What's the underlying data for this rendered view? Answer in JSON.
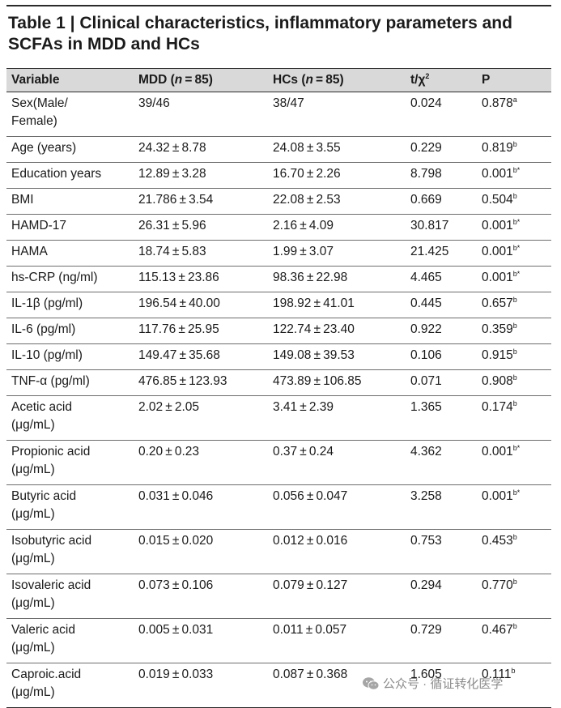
{
  "title": {
    "label": "Table 1",
    "separator": "|",
    "text": "Clinical characteristics, inflammatory parameters and SCFAs in MDD and HCs"
  },
  "columns": [
    {
      "text": "Variable"
    },
    {
      "text": "MDD (",
      "italic": "n",
      "rest": " = 85)"
    },
    {
      "text": "HCs (",
      "italic": "n",
      "rest": " = 85)"
    },
    {
      "text": "t/χ",
      "sup": "2"
    },
    {
      "text": "P"
    }
  ],
  "rows": [
    {
      "variable": "Sex(Male/\nFemale)",
      "mdd": "39/46",
      "hcs": "38/47",
      "stat": "0.024",
      "p": "0.878",
      "p_sup": "a",
      "lines": 2
    },
    {
      "variable": "Age (years)",
      "mdd": "24.32 ± 8.78",
      "hcs": "24.08 ± 3.55",
      "stat": "0.229",
      "p": "0.819",
      "p_sup": "b",
      "lines": 1
    },
    {
      "variable": "Education years",
      "mdd": "12.89 ± 3.28",
      "hcs": "16.70 ± 2.26",
      "stat": "8.798",
      "p": "0.001",
      "p_sup": "b*",
      "lines": 1
    },
    {
      "variable": "BMI",
      "mdd": "21.786 ± 3.54",
      "hcs": "22.08 ± 2.53",
      "stat": "0.669",
      "p": "0.504",
      "p_sup": "b",
      "lines": 1
    },
    {
      "variable": "HAMD-17",
      "mdd": "26.31 ± 5.96",
      "hcs": "2.16 ± 4.09",
      "stat": "30.817",
      "p": "0.001",
      "p_sup": "b*",
      "lines": 1
    },
    {
      "variable": "HAMA",
      "mdd": "18.74 ± 5.83",
      "hcs": "1.99 ± 3.07",
      "stat": "21.425",
      "p": "0.001",
      "p_sup": "b*",
      "lines": 1
    },
    {
      "variable": "hs-CRP (ng/ml)",
      "mdd": "115.13 ± 23.86",
      "hcs": "98.36 ± 22.98",
      "stat": "4.465",
      "p": "0.001",
      "p_sup": "b*",
      "lines": 1
    },
    {
      "variable": "IL-1β (pg/ml)",
      "mdd": "196.54 ± 40.00",
      "hcs": "198.92 ± 41.01",
      "stat": "0.445",
      "p": "0.657",
      "p_sup": "b",
      "lines": 1
    },
    {
      "variable": "IL-6 (pg/ml)",
      "mdd": "117.76 ± 25.95",
      "hcs": "122.74 ± 23.40",
      "stat": "0.922",
      "p": "0.359",
      "p_sup": "b",
      "lines": 1
    },
    {
      "variable": "IL-10 (pg/ml)",
      "mdd": "149.47 ± 35.68",
      "hcs": "149.08 ± 39.53",
      "stat": "0.106",
      "p": "0.915",
      "p_sup": "b",
      "lines": 1
    },
    {
      "variable": "TNF-α (pg/ml)",
      "mdd": "476.85 ± 123.93",
      "hcs": "473.89 ± 106.85",
      "stat": "0.071",
      "p": "0.908",
      "p_sup": "b",
      "lines": 1
    },
    {
      "variable": "Acetic acid\n(μg/mL)",
      "mdd": "2.02 ± 2.05",
      "hcs": "3.41 ± 2.39",
      "stat": "1.365",
      "p": "0.174",
      "p_sup": "b",
      "lines": 2
    },
    {
      "variable": "Propionic acid\n(μg/mL)",
      "mdd": "0.20 ± 0.23",
      "hcs": "0.37 ± 0.24",
      "stat": "4.362",
      "p": "0.001",
      "p_sup": "b*",
      "lines": 2
    },
    {
      "variable": "Butyric acid\n(μg/mL)",
      "mdd": "0.031 ± 0.046",
      "hcs": "0.056 ± 0.047",
      "stat": "3.258",
      "p": "0.001",
      "p_sup": "b*",
      "lines": 2
    },
    {
      "variable": "Isobutyric acid\n(μg/mL)",
      "mdd": "0.015 ± 0.020",
      "hcs": "0.012 ± 0.016",
      "stat": "0.753",
      "p": "0.453",
      "p_sup": "b",
      "lines": 2
    },
    {
      "variable": "Isovaleric acid\n(μg/mL)",
      "mdd": "0.073 ± 0.106",
      "hcs": "0.079 ± 0.127",
      "stat": "0.294",
      "p": "0.770",
      "p_sup": "b",
      "lines": 2
    },
    {
      "variable": "Valeric acid\n(μg/mL)",
      "mdd": "0.005 ± 0.031",
      "hcs": "0.011 ± 0.057",
      "stat": "0.729",
      "p": "0.467",
      "p_sup": "b",
      "lines": 2
    },
    {
      "variable": "Caproic.acid\n(μg/mL)",
      "mdd": "0.019 ± 0.033",
      "hcs": "0.087 ± 0.368",
      "stat": "1.605",
      "p": "0.111",
      "p_sup": "b",
      "lines": 2
    }
  ],
  "watermark": {
    "text": "公众号 · 循证转化医学",
    "icon": "wechat-icon"
  }
}
